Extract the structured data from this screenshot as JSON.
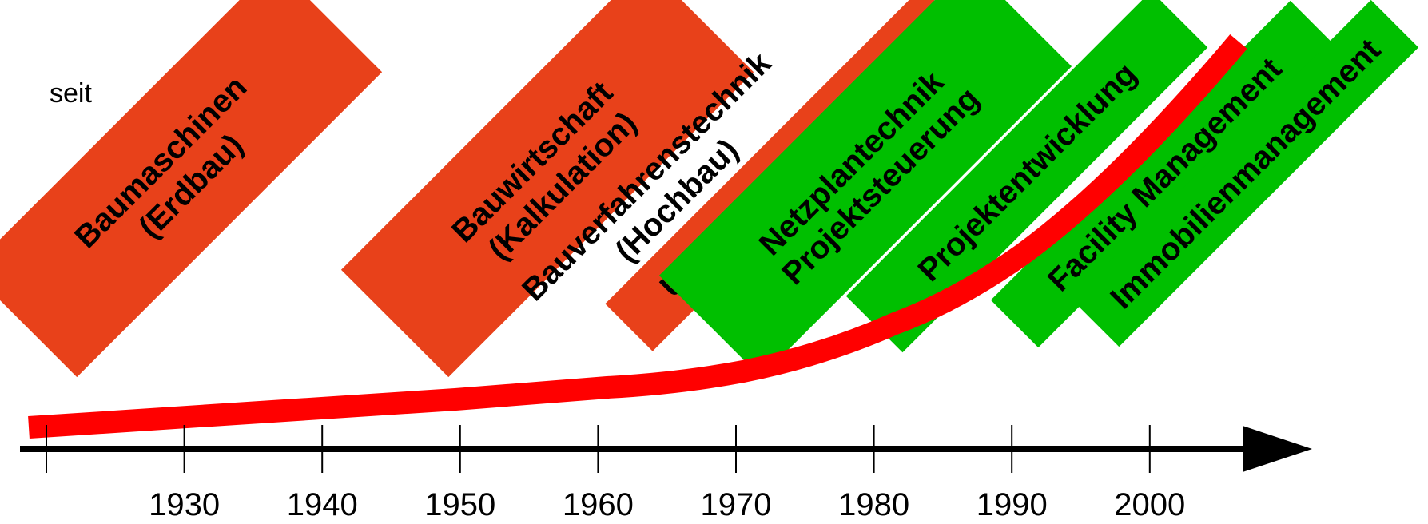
{
  "intro_text": "seit",
  "colors": {
    "established": "#E8411A",
    "new": "#00BF00",
    "curve": "#FF0000",
    "axis": "#000000"
  },
  "timeline": {
    "ticks": [
      "1930",
      "1940",
      "1950",
      "1960",
      "1970",
      "1980",
      "1990",
      "2000"
    ]
  },
  "bands": [
    {
      "lines": [
        "Baumaschinen",
        "(Erdbau)"
      ],
      "category": "established"
    },
    {
      "lines": [
        "Bauwirtschaft",
        "(Kalkulation)"
      ],
      "category": "established"
    },
    {
      "lines": [
        "Bauverfahrenstechnik",
        "(Hochbau)"
      ],
      "category": "none"
    },
    {
      "lines": [
        "Unternehmensführung"
      ],
      "category": "established"
    },
    {
      "lines": [
        "Netzplantechnik",
        "Projektsteuerung"
      ],
      "category": "new"
    },
    {
      "lines": [
        "Projektentwicklung"
      ],
      "category": "new"
    },
    {
      "lines": [
        "Facility Management"
      ],
      "category": "new"
    },
    {
      "lines": [
        "Immobilienmanagement"
      ],
      "category": "new"
    }
  ]
}
